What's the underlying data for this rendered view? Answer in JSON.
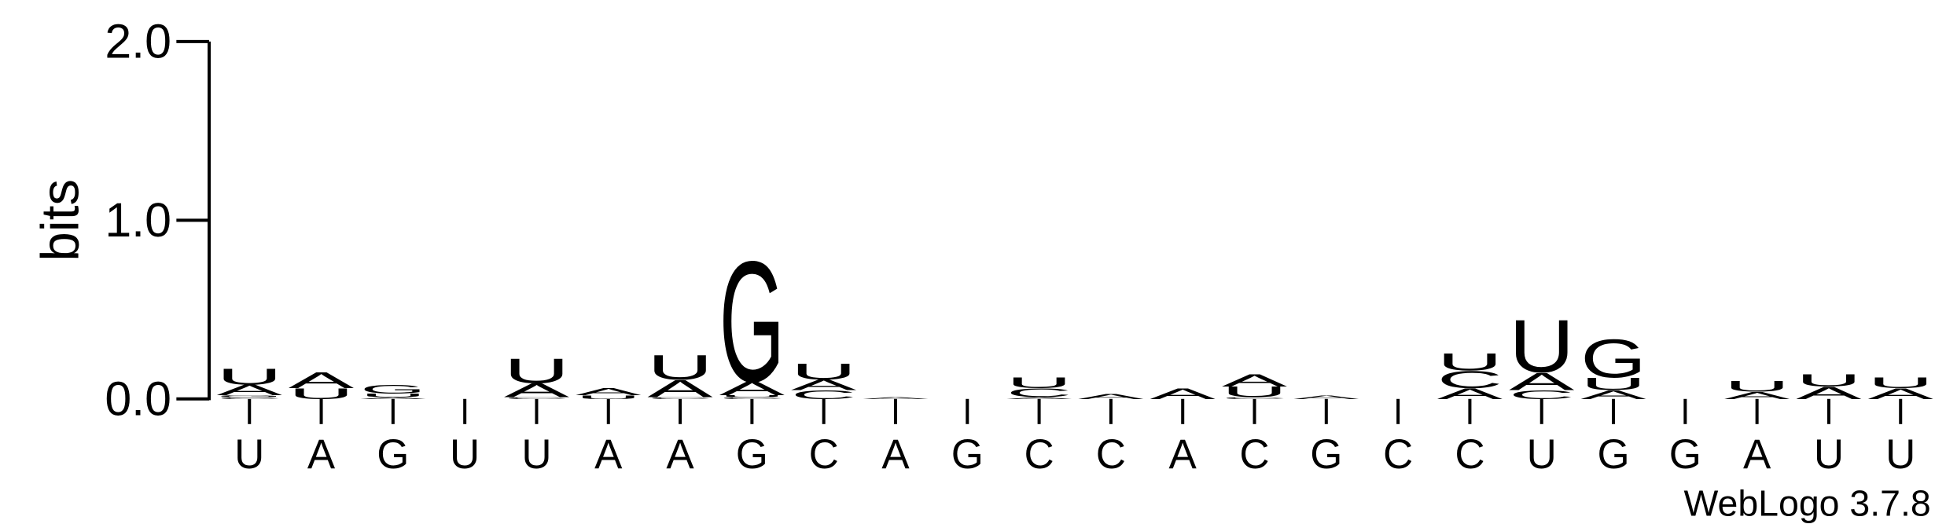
{
  "chart_data": {
    "type": "logo",
    "ylabel": "bits",
    "footer": "WebLogo 3.7.8",
    "categories": [
      "U",
      "A",
      "G",
      "U",
      "U",
      "A",
      "A",
      "G",
      "C",
      "A",
      "G",
      "C",
      "C",
      "A",
      "C",
      "G",
      "C",
      "C",
      "U",
      "G",
      "G",
      "A",
      "U",
      "U"
    ],
    "ylim": [
      0,
      2
    ],
    "yticks": [
      {
        "value": 0,
        "label": "0.0"
      },
      {
        "value": 1,
        "label": "1.0"
      },
      {
        "value": 2,
        "label": "2.0"
      }
    ],
    "series": [
      {
        "name": "A",
        "color": "#f7931e",
        "values": [
          0.06,
          0.09,
          0.01,
          0,
          0.08,
          0.04,
          0.1,
          0.08,
          0.06,
          0.01,
          0,
          0.01,
          0.03,
          0.06,
          0.07,
          0.02,
          0,
          0.06,
          0.1,
          0.05,
          0,
          0.04,
          0.07,
          0.06
        ]
      },
      {
        "name": "C",
        "color": "#0000ff",
        "values": [
          0.01,
          0,
          0,
          0,
          0.01,
          0,
          0.01,
          0.01,
          0.05,
          0,
          0,
          0.05,
          0,
          0,
          0.01,
          0,
          0,
          0.1,
          0.05,
          0,
          0,
          0,
          0,
          0
        ]
      },
      {
        "name": "G",
        "color": "#0000ff",
        "values": [
          0.01,
          0,
          0.05,
          0,
          0,
          0,
          0,
          0.69,
          0,
          0,
          0,
          0,
          0,
          0,
          0,
          0,
          0,
          0,
          0,
          0.22,
          0,
          0,
          0,
          0
        ]
      },
      {
        "name": "U",
        "color": "#f7931e",
        "values": [
          0.09,
          0.06,
          0.02,
          0,
          0.14,
          0.02,
          0.14,
          0.01,
          0.09,
          0,
          0,
          0.06,
          0,
          0,
          0.06,
          0,
          0,
          0.1,
          0.3,
          0.07,
          0,
          0.06,
          0.07,
          0.06
        ]
      }
    ]
  }
}
